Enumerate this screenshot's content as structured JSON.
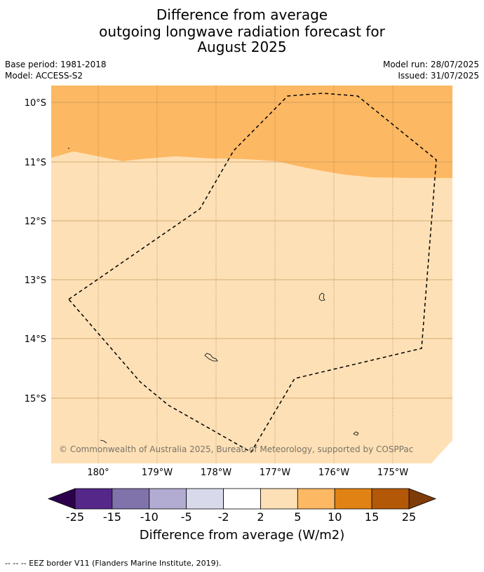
{
  "title": {
    "line1": "Difference from average",
    "line2": "outgoing longwave radiation forecast for",
    "line3": "August 2025"
  },
  "meta": {
    "base_period": "Base period: 1981-2018",
    "model": "Model: ACCESS-S2",
    "model_run": "Model run: 28/07/2025",
    "issued": "Issued: 31/07/2025"
  },
  "map": {
    "lat_labels": [
      "10°S",
      "11°S",
      "12°S",
      "13°S",
      "14°S",
      "15°S"
    ],
    "lon_labels": [
      "180°",
      "179°W",
      "178°W",
      "177°W",
      "176°W",
      "175°W"
    ],
    "copyright": "© Commonwealth of Australia 2025, Bureau of Meteorology, supported by COSPPac",
    "fill_colors": {
      "band_5_10": "#fdb863",
      "band_2_5": "#fee0b6"
    }
  },
  "colorbar": {
    "ticks": [
      "-25",
      "-15",
      "-10",
      "-5",
      "-2",
      "2",
      "5",
      "10",
      "15",
      "25"
    ],
    "colors": [
      "#542788",
      "#8073ac",
      "#b2abd2",
      "#d8daeb",
      "#ffffff",
      "#fee0b6",
      "#fdb863",
      "#e08214",
      "#b35806"
    ],
    "extend_low": "#2d004b",
    "extend_high": "#7f3b08",
    "label": "Difference from average (W/m2)"
  },
  "legend": {
    "eez": "--  --  -- EEZ border V11 (Flanders Marine Institute, 2019)."
  }
}
